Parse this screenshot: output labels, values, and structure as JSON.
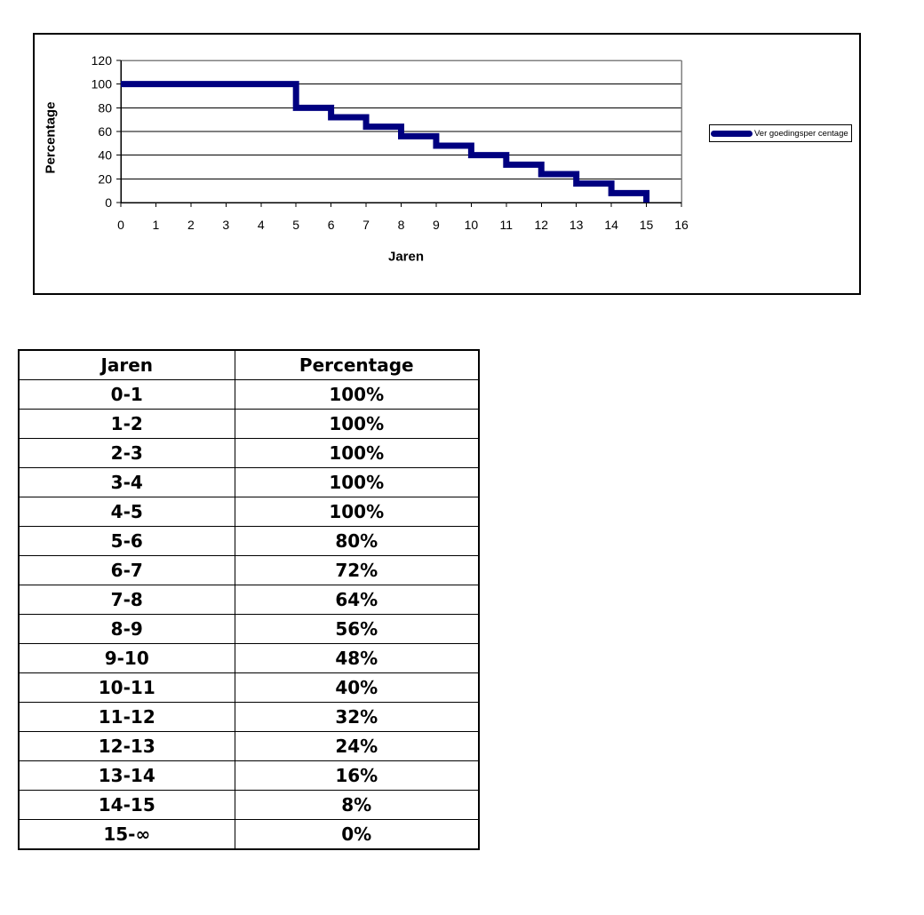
{
  "chart": {
    "colors": {
      "series_line": "#000080",
      "plot_border": "#808080",
      "grid": "#000000",
      "axis": "#000000",
      "text": "#000000"
    }
  },
  "chart_data": {
    "type": "line",
    "subtype": "step",
    "title": "",
    "xlabel": "Jaren",
    "ylabel": "Percentage",
    "xlim": [
      0,
      16
    ],
    "ylim": [
      0,
      120
    ],
    "x_ticks": [
      0,
      1,
      2,
      3,
      4,
      5,
      6,
      7,
      8,
      9,
      10,
      11,
      12,
      13,
      14,
      15,
      16
    ],
    "y_ticks": [
      0,
      20,
      40,
      60,
      80,
      100,
      120
    ],
    "grid": true,
    "legend_position": "right",
    "series": [
      {
        "name": "Ver goedingsper centage",
        "color": "#000080",
        "line_width": 7,
        "points": [
          [
            0,
            100
          ],
          [
            5,
            100
          ],
          [
            5,
            80
          ],
          [
            6,
            80
          ],
          [
            6,
            72
          ],
          [
            7,
            72
          ],
          [
            7,
            64
          ],
          [
            8,
            64
          ],
          [
            8,
            56
          ],
          [
            9,
            56
          ],
          [
            9,
            48
          ],
          [
            10,
            48
          ],
          [
            10,
            40
          ],
          [
            11,
            40
          ],
          [
            11,
            32
          ],
          [
            12,
            32
          ],
          [
            12,
            24
          ],
          [
            13,
            24
          ],
          [
            13,
            16
          ],
          [
            14,
            16
          ],
          [
            14,
            8
          ],
          [
            15,
            8
          ],
          [
            15,
            0
          ]
        ]
      }
    ]
  },
  "table": {
    "headers": [
      "Jaren",
      "Percentage"
    ],
    "rows": [
      [
        "0-1",
        "100%"
      ],
      [
        "1-2",
        "100%"
      ],
      [
        "2-3",
        "100%"
      ],
      [
        "3-4",
        "100%"
      ],
      [
        "4-5",
        "100%"
      ],
      [
        "5-6",
        "80%"
      ],
      [
        "6-7",
        "72%"
      ],
      [
        "7-8",
        "64%"
      ],
      [
        "8-9",
        "56%"
      ],
      [
        "9-10",
        "48%"
      ],
      [
        "10-11",
        "40%"
      ],
      [
        "11-12",
        "32%"
      ],
      [
        "12-13",
        "24%"
      ],
      [
        "13-14",
        "16%"
      ],
      [
        "14-15",
        "8%"
      ],
      [
        "15-∞",
        "0%"
      ]
    ]
  }
}
